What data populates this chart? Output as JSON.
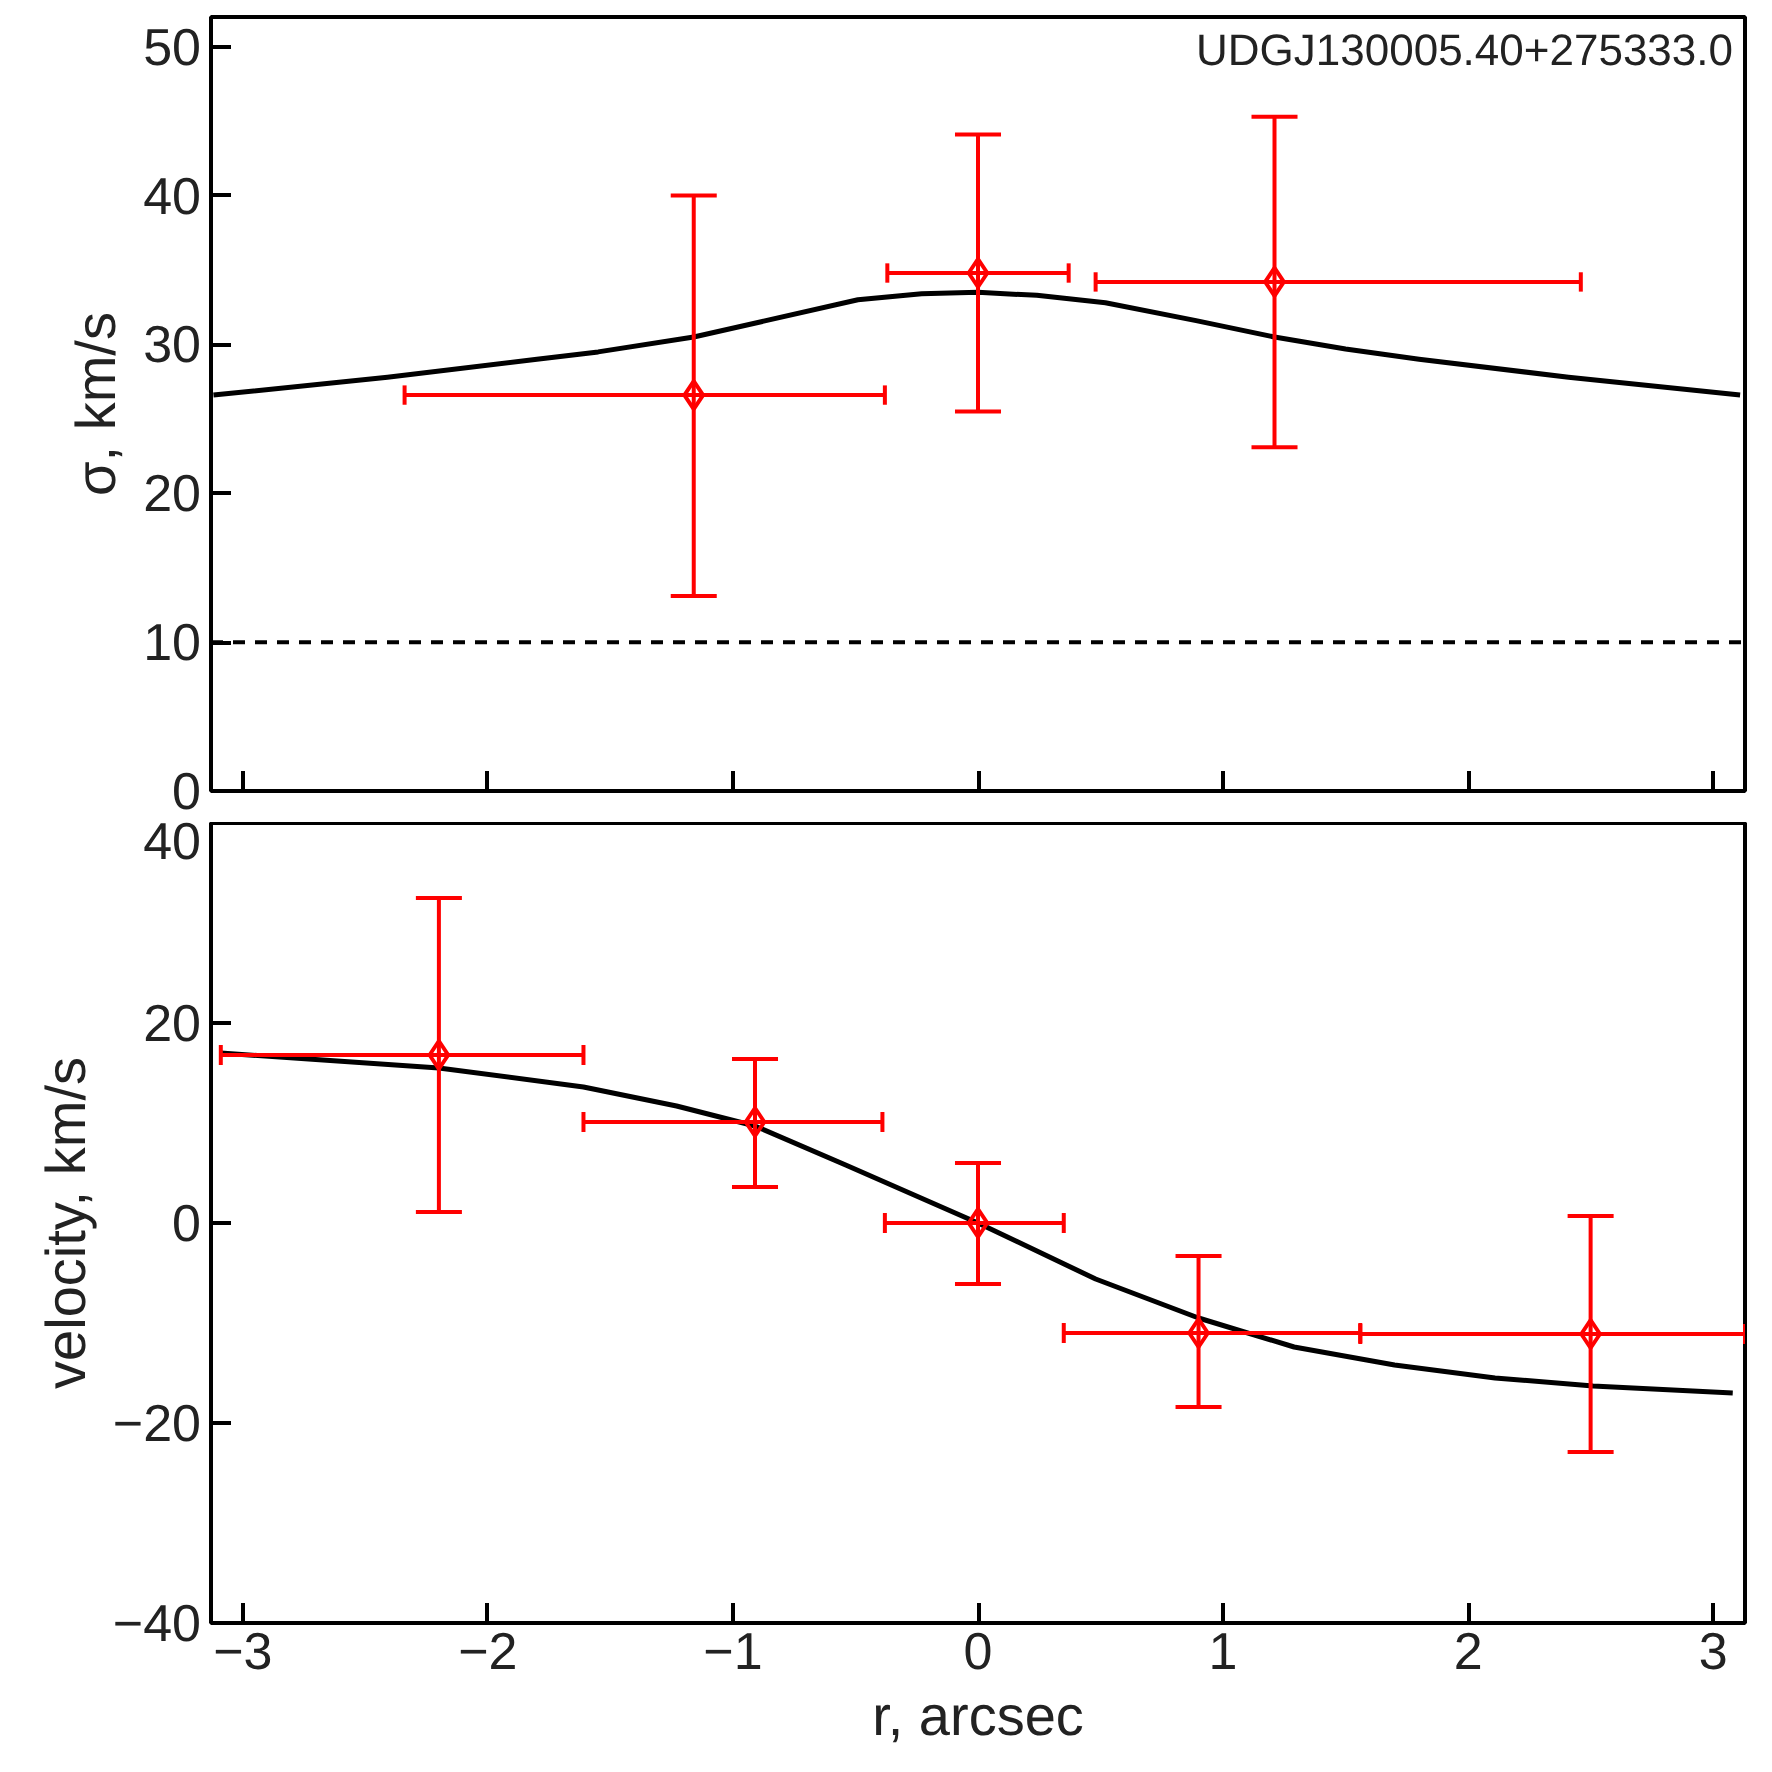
{
  "chart_data": [
    {
      "type": "scatter",
      "title": "UDGJ130005.40+275333.0",
      "ylabel": "σ, km/s",
      "xlim": [
        -3.13,
        3.13
      ],
      "ylim": [
        0,
        52
      ],
      "xticks": [
        -3,
        -2,
        -1,
        0,
        1,
        2,
        3
      ],
      "yticks": [
        0,
        10,
        20,
        30,
        40,
        50
      ],
      "tick_labels": "y",
      "grid": false,
      "ref_lines": [
        {
          "axis": "y",
          "value": 10,
          "color": "#000000",
          "line_style": "dashed"
        }
      ],
      "series": [
        {
          "type": "line",
          "color": "#000000",
          "line_style": "solid",
          "x": [
            -3.12,
            -2.41,
            -1.8,
            -1.55,
            -1.16,
            -0.49,
            -0.23,
            0.0,
            0.24,
            0.52,
            0.89,
            1.21,
            1.5,
            1.8,
            2.41,
            3.11
          ],
          "values": [
            26.6,
            27.8,
            29.0,
            29.5,
            30.5,
            33.0,
            33.4,
            33.5,
            33.3,
            32.8,
            31.6,
            30.5,
            29.7,
            29.0,
            27.8,
            26.6
          ]
        },
        {
          "color": "#ff0000",
          "marker": "diamond",
          "x": [
            -1.16,
            0.0,
            1.21
          ],
          "values": [
            26.6,
            34.8,
            34.2
          ],
          "errors": [
            [
              13.1,
              40.0
            ],
            [
              25.5,
              44.1
            ],
            [
              23.1,
              45.3
            ]
          ],
          "xerrors": [
            [
              -2.34,
              -0.38
            ],
            [
              -0.37,
              0.37
            ],
            [
              0.48,
              2.46
            ]
          ]
        }
      ]
    },
    {
      "type": "scatter",
      "xlabel": "r, arcsec",
      "ylabel": "velocity, km/s",
      "xlim": [
        -3.13,
        3.13
      ],
      "ylim": [
        -40,
        40
      ],
      "xticks": [
        -3,
        -2,
        -1,
        0,
        1,
        2,
        3
      ],
      "yticks": [
        -40,
        -20,
        0,
        20,
        40
      ],
      "grid": false,
      "series": [
        {
          "type": "line",
          "color": "#000000",
          "line_style": "solid",
          "x": [
            -3.09,
            -2.2,
            -1.61,
            -1.23,
            -0.91,
            -0.54,
            0.0,
            0.48,
            0.9,
            1.29,
            1.7,
            2.11,
            2.51,
            3.08
          ],
          "values": [
            17.0,
            15.5,
            13.6,
            11.7,
            9.7,
            5.8,
            0.0,
            -5.6,
            -9.5,
            -12.4,
            -14.2,
            -15.5,
            -16.3,
            -17.0
          ]
        },
        {
          "color": "#ff0000",
          "marker": "diamond",
          "x": [
            -2.2,
            -0.91,
            0.0,
            0.9,
            2.5
          ],
          "values": [
            16.8,
            10.1,
            0.0,
            -11.0,
            -11.1
          ],
          "errors": [
            [
              1.1,
              32.5
            ],
            [
              3.6,
              16.4
            ],
            [
              -6.1,
              6.0
            ],
            [
              -18.4,
              -3.3
            ],
            [
              -22.9,
              0.7
            ]
          ],
          "xerrors": [
            [
              -3.09,
              -1.61
            ],
            [
              -1.61,
              -0.39
            ],
            [
              -0.38,
              0.35
            ],
            [
              0.35,
              1.56
            ],
            [
              1.56,
              3.13
            ]
          ]
        }
      ]
    }
  ]
}
